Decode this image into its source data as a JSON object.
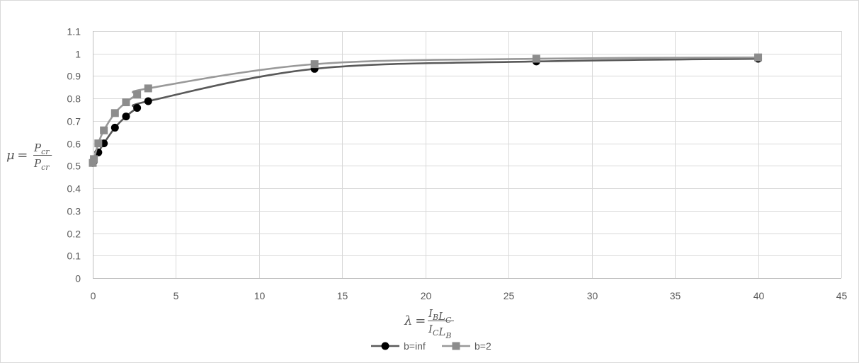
{
  "chart_data": {
    "type": "scatter",
    "title": "",
    "xlabel": {
      "lhs": "λ",
      "eq": "=",
      "num": [
        {
          "base": "I",
          "sub": "B"
        },
        {
          "base": "L",
          "sub": "C"
        }
      ],
      "den": [
        {
          "base": "I",
          "sub": "C"
        },
        {
          "base": "L",
          "sub": "B"
        }
      ]
    },
    "ylabel": {
      "lhs": "μ",
      "eq": "=",
      "num": [
        {
          "base": "P",
          "sub": "cr"
        }
      ],
      "den": [
        {
          "base": "P",
          "sub": "cr"
        }
      ]
    },
    "xlim": [
      0,
      45
    ],
    "ylim": [
      0,
      1.1
    ],
    "xticks": [
      0,
      5,
      10,
      15,
      20,
      25,
      30,
      35,
      40,
      45
    ],
    "yticks": [
      0,
      0.1,
      0.2,
      0.3,
      0.4,
      0.5,
      0.6,
      0.7,
      0.8,
      0.9,
      1,
      1.1
    ],
    "xtick_labels": [
      "0",
      "5",
      "10",
      "15",
      "20",
      "25",
      "30",
      "35",
      "40",
      "45"
    ],
    "ytick_labels": [
      "0",
      "0.1",
      "0.2",
      "0.3",
      "0.4",
      "0.5",
      "0.6",
      "0.7",
      "0.8",
      "0.9",
      "1",
      "1.1"
    ],
    "grid": true,
    "legend_position": "bottom",
    "series": [
      {
        "name": "b=inf",
        "marker": "circle",
        "line_color": "#595959",
        "marker_color": "#000000",
        "points": [
          {
            "x": 0,
            "y": 0.513
          },
          {
            "x": 0.067,
            "y": 0.52
          },
          {
            "x": 0.333,
            "y": 0.56
          },
          {
            "x": 0.667,
            "y": 0.6
          },
          {
            "x": 1.333,
            "y": 0.67
          },
          {
            "x": 2,
            "y": 0.72
          },
          {
            "x": 2.667,
            "y": 0.758
          },
          {
            "x": 3.333,
            "y": 0.788
          },
          {
            "x": 13.333,
            "y": 0.932
          },
          {
            "x": 26.667,
            "y": 0.965
          },
          {
            "x": 40,
            "y": 0.977
          }
        ]
      },
      {
        "name": "b=2",
        "marker": "square",
        "line_color": "#999999",
        "marker_color": "#8c8c8c",
        "points": [
          {
            "x": 0,
            "y": 0.513
          },
          {
            "x": 0.067,
            "y": 0.53
          },
          {
            "x": 0.333,
            "y": 0.6
          },
          {
            "x": 0.667,
            "y": 0.658
          },
          {
            "x": 1.333,
            "y": 0.735
          },
          {
            "x": 2,
            "y": 0.783
          },
          {
            "x": 2.667,
            "y": 0.818
          },
          {
            "x": 3.333,
            "y": 0.845
          },
          {
            "x": 13.333,
            "y": 0.953
          },
          {
            "x": 26.667,
            "y": 0.977
          },
          {
            "x": 40,
            "y": 0.983
          }
        ]
      }
    ]
  }
}
